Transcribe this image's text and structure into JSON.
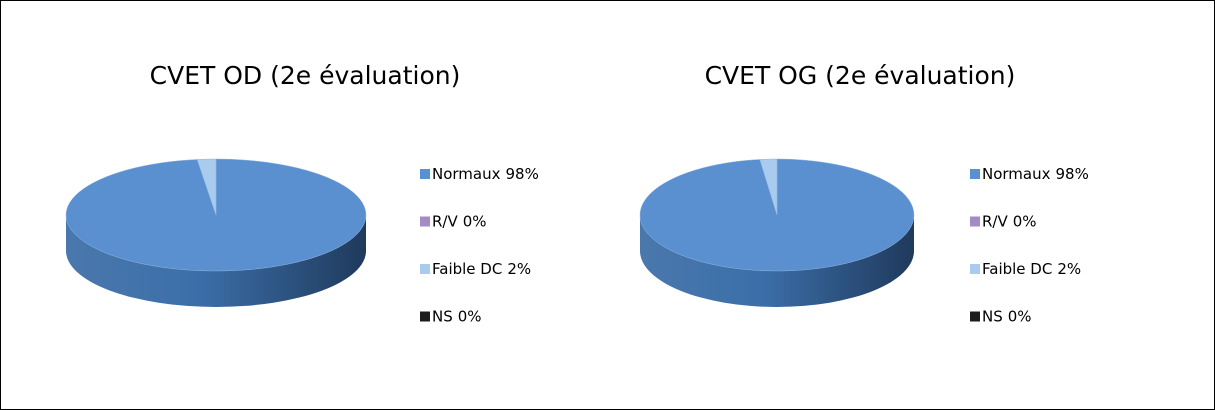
{
  "chart_data": [
    {
      "type": "pie",
      "title": "CVET OD (2e évaluation)",
      "categories": [
        "Normaux",
        "R/V",
        "Faible DC",
        "NS"
      ],
      "values": [
        98,
        0,
        2,
        0
      ],
      "value_labels": [
        "98%",
        "0%",
        "2%",
        "0%"
      ],
      "colors": [
        "#5a8fd0",
        "#a58bc4",
        "#a9cbee",
        "#1c1c1c"
      ]
    },
    {
      "type": "pie",
      "title": "CVET OG (2e évaluation)",
      "categories": [
        "Normaux",
        "R/V",
        "Faible DC",
        "NS"
      ],
      "values": [
        98,
        0,
        2,
        0
      ],
      "value_labels": [
        "98%",
        "0%",
        "2%",
        "0%"
      ],
      "colors": [
        "#5a8fd0",
        "#a58bc4",
        "#a9cbee",
        "#1c1c1c"
      ]
    }
  ]
}
